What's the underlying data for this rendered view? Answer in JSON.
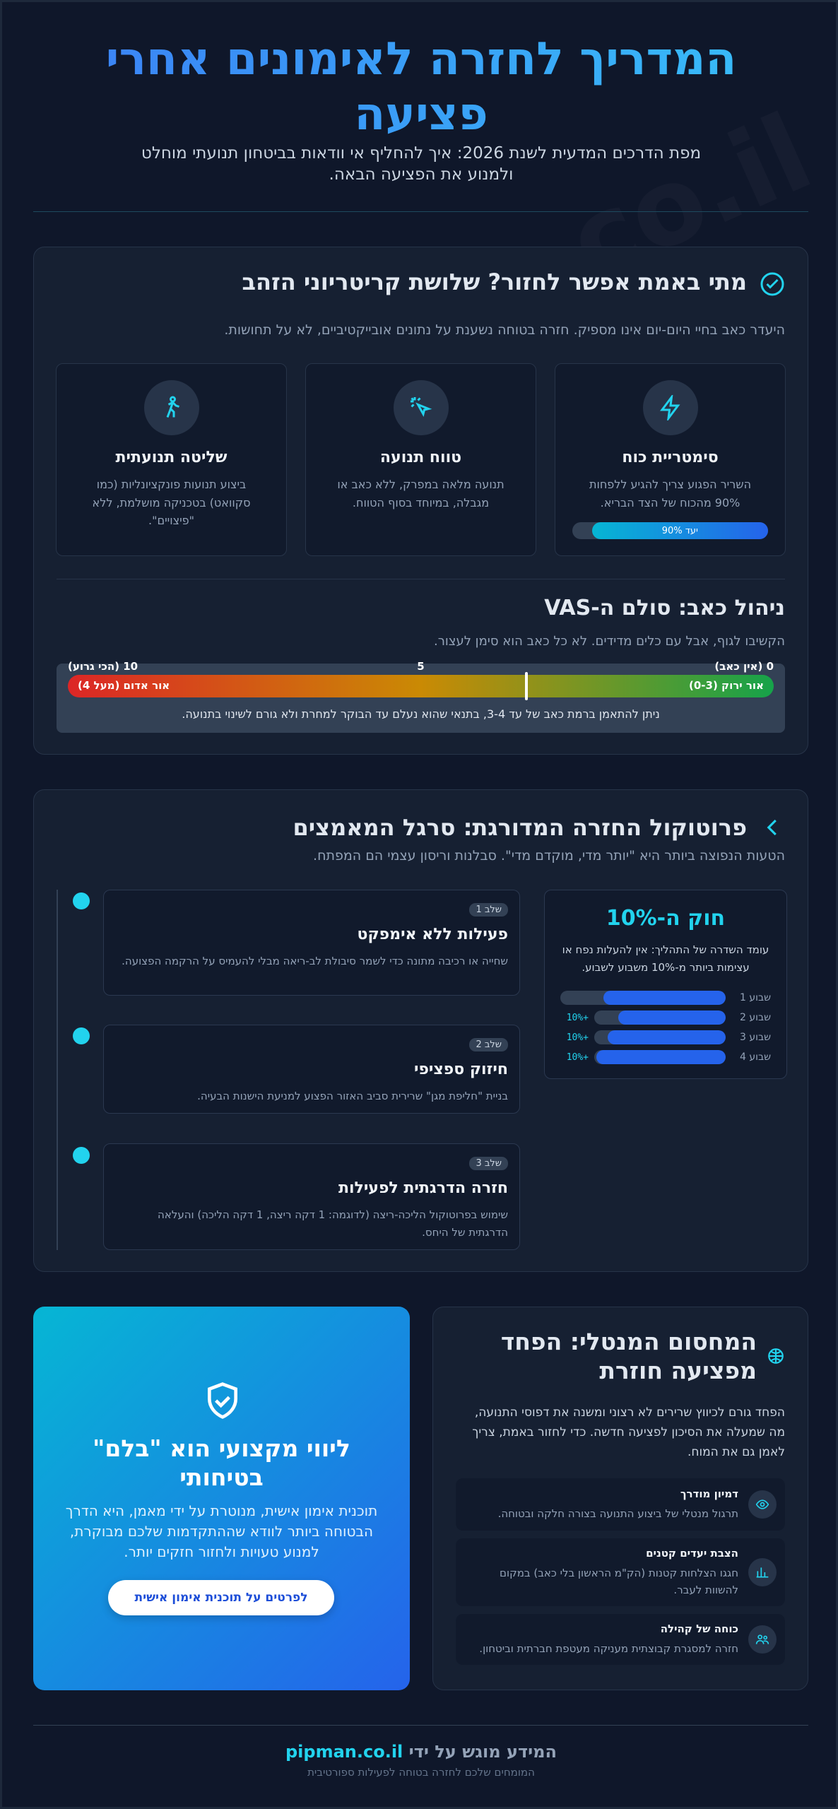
{
  "watermark": "pipman.co.il",
  "header": {
    "title": "המדריך לחזרה לאימונים אחרי פציעה",
    "subtitle": "מפת הדרכים המדעית לשנת 2026: איך להחליף אי וודאות בביטחון תנועתי מוחלט ולמנוע את הפציעה הבאה."
  },
  "criteria": {
    "title": "מתי באמת אפשר לחזור? שלושת קריטריוני הזהב",
    "description": "היעדר כאב בחיי היום-יום אינו מספיק. חזרה בטוחה נשענת על נתונים אובייקטיביים, לא על תחושות.",
    "items": [
      {
        "title": "סימטריית כוח",
        "text": "השריר הפגוע צריך להגיע ללפחות 90% מהכוח של הצד הבריא.",
        "progress": {
          "label": "יעד 90%",
          "value": 90
        }
      },
      {
        "title": "טווח תנועה",
        "text": "תנועה מלאה במפרק, ללא כאב או מגבלה, במיוחד בסוף הטווח."
      },
      {
        "title": "שליטה תנועתית",
        "text": "ביצוע תנועות פונקציונליות (כמו סקוואט) בטכניקה מושלמת, ללא \"פיצויים\"."
      }
    ]
  },
  "vas": {
    "title": "ניהול כאב: סולם ה-VAS",
    "description": "הקשיבו לגוף, אבל עם כלים מדידים. לא כל כאב הוא סימן לעצור.",
    "ticks": [
      {
        "value": 0,
        "label": "0 (אין כאב)"
      },
      5,
      {
        "value": 10,
        "label": "10 (הכי גרוע)"
      }
    ],
    "green_zone": "אור ירוק (0-3)",
    "red_zone": "אור אדום (מעל 4)",
    "marker": 3.5,
    "note": "ניתן להתאמן ברמת כאב של עד 3-4, בתנאי שהוא נעלם עד הבוקר למחרת ולא גורם לשינוי בתנועה."
  },
  "protocol": {
    "title": "פרוטוקול החזרה המדורגת: סרגל המאמצים",
    "description": "הטעות הנפוצה ביותר היא \"יותר מדי, מוקדם מדי\". סבלנות וריסון עצמי הם המפתח.",
    "steps": [
      {
        "badge": "שלב 1",
        "title": "פעילות ללא אימפקט",
        "text": "שחייה או רכיבה מתונה כדי לשמר סיבולת לב-ריאה מבלי להעמיס על הרקמה הפצועה."
      },
      {
        "badge": "שלב 2",
        "title": "חיזוק ספציפי",
        "text": "בניית \"חליפת מגן\" שרירית סביב האזור הפצוע למניעת הישנות הבעיה."
      },
      {
        "badge": "שלב 3",
        "title": "חזרה הדרגתית לפעילות",
        "text": "שימוש בפרוטוקול הליכה-ריצה (לדוגמה: 1 דקה ריצה, 1 דקה הליכה) והעלאה הדרגתית של היחס."
      }
    ],
    "rule": {
      "title": "חוק ה-10%",
      "text": "עומד השדרה של התהליך: אין להעלות נפח או עצימות ביותר מ-10% משבוע לשבוע.",
      "weeks": [
        {
          "label": "שבוע 1",
          "value": 20
        },
        {
          "label": "שבוע 2",
          "change": "+10%",
          "value": 22
        },
        {
          "label": "שבוע 3",
          "change": "+10%",
          "value": 24.2
        },
        {
          "label": "שבוע 4",
          "change": "+10%",
          "value": 26.6
        }
      ]
    }
  },
  "coaching": {
    "title": "ליווי מקצועי הוא \"בלם\" בטיחותי",
    "text": "תוכנית אימון אישית, מנוטרת על ידי מאמן, היא הדרך הבטוחה ביותר לוודא שההתקדמות שלכם מבוקרת, למנוע טעויות ולחזור חזקים יותר.",
    "button": "לפרטים על תוכנית אימון אישית"
  },
  "mental": {
    "title": "המחסום המנטלי: הפחד מפציעה חוזרת",
    "text": "הפחד גורם לכיווץ שרירים לא רצוני ומשנה את דפוסי התנועה, מה שמעלה את הסיכון לפציעה חדשה. כדי לחזור באמת, צריך לאמן גם את המוח.",
    "items": [
      {
        "title": "דמיון מודרך",
        "text": "תרגול מנטלי של ביצוע התנועה בצורה חלקה ובטוחה."
      },
      {
        "title": "הצבת יעדים קטנים",
        "text": "חגגו הצלחות קטנות (הק\"מ הראשון בלי כאב) במקום להשוות לעבר."
      },
      {
        "title": "כוחה של קהילה",
        "text": "חזרה למסגרת קבוצתית מעניקה מעטפת חברתית וביטחון."
      }
    ]
  },
  "footer": {
    "prefix": "המידע מוגש על ידי",
    "brand": "pipman.co.il",
    "tagline": "המומחים שלכם לחזרה בטוחה לפעילות ספורטיבית"
  }
}
